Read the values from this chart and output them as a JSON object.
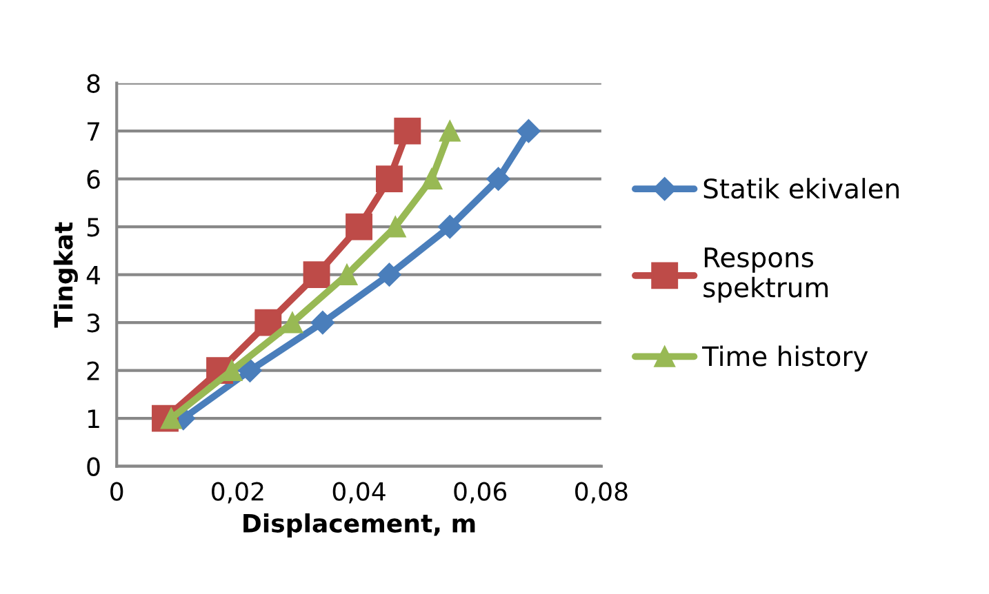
{
  "chart_data": {
    "type": "line",
    "xlabel": "Displacement, m",
    "ylabel": "Tingkat",
    "xlim": [
      0,
      0.08
    ],
    "xticks": [
      {
        "value": 0,
        "label": "0"
      },
      {
        "value": 0.02,
        "label": "0,02"
      },
      {
        "value": 0.04,
        "label": "0,04"
      },
      {
        "value": 0.06,
        "label": "0,06"
      },
      {
        "value": 0.08,
        "label": "0,08"
      }
    ],
    "ylim": [
      0,
      8
    ],
    "yticks": [
      0,
      1,
      2,
      3,
      4,
      5,
      6,
      7,
      8
    ],
    "grid": "y",
    "legend": "right",
    "series": [
      {
        "name": "Statik ekivalen",
        "color": "#4a7ebb",
        "marker": "diamond",
        "x": [
          0.011,
          0.022,
          0.034,
          0.045,
          0.055,
          0.063,
          0.068
        ],
        "values": [
          1,
          2,
          3,
          4,
          5,
          6,
          7
        ]
      },
      {
        "name": "Respons\nspektrum",
        "color": "#be4b48",
        "marker": "square",
        "x": [
          0.008,
          0.017,
          0.025,
          0.033,
          0.04,
          0.045,
          0.048
        ],
        "values": [
          1,
          2,
          3,
          4,
          5,
          6,
          7
        ]
      },
      {
        "name": "Time history",
        "color": "#98b954",
        "marker": "triangle",
        "x": [
          0.009,
          0.019,
          0.029,
          0.038,
          0.046,
          0.052,
          0.055
        ],
        "values": [
          1,
          2,
          3,
          4,
          5,
          6,
          7
        ]
      }
    ]
  }
}
